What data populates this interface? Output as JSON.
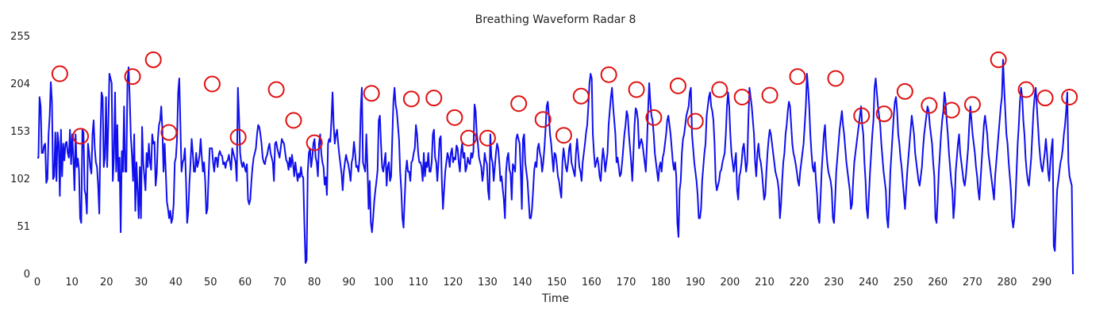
{
  "chart_data": {
    "type": "line",
    "title": "Breathing Waveform Radar 8",
    "xlabel": "Time",
    "ylabel": "",
    "xlim": [
      0,
      299
    ],
    "ylim": [
      0,
      255
    ],
    "x_ticks": [
      0,
      10,
      20,
      30,
      40,
      50,
      60,
      70,
      80,
      90,
      100,
      110,
      120,
      130,
      140,
      150,
      160,
      170,
      180,
      190,
      200,
      210,
      220,
      230,
      240,
      250,
      260,
      270,
      280,
      290
    ],
    "y_ticks": [
      0,
      51,
      102,
      153,
      204,
      255
    ],
    "grid": false,
    "legend": "none",
    "colors": {
      "line": "#1010ee",
      "peak_marker": "#e01010"
    },
    "series": [
      {
        "values": [
          125,
          125,
          190,
          180,
          130,
          130,
          138,
          140,
          98,
          102,
          150,
          170,
          206,
          185,
          102,
          105,
          152,
          100,
          152,
          140,
          84,
          155,
          105,
          140,
          122,
          140,
          142,
          130,
          125,
          155,
          118,
          150,
          125,
          90,
          150,
          115,
          124,
          112,
          60,
          55,
          155,
          152,
          90,
          85,
          65,
          140,
          130,
          115,
          108,
          150,
          165,
          135,
          120,
          115,
          95,
          65,
          145,
          195,
          190,
          115,
          125,
          190,
          115,
          160,
          215,
          210,
          205,
          100,
          125,
          195,
          110,
          160,
          100,
          125,
          45,
          132,
          110,
          180,
          110,
          110,
          205,
          222,
          190,
          148,
          128,
          100,
          150,
          68,
          120,
          90,
          60,
          115,
          60,
          158,
          120,
          105,
          90,
          130,
          115,
          140,
          120,
          112,
          150,
          140,
          142,
          95,
          108,
          145,
          160,
          165,
          180,
          155,
          110,
          140,
          110,
          78,
          70,
          60,
          68,
          55,
          60,
          75,
          120,
          125,
          145,
          195,
          210,
          160,
          110,
          120,
          123,
          135,
          100,
          55,
          68,
          98,
          120,
          145,
          130,
          110,
          110,
          130,
          115,
          120,
          128,
          145,
          125,
          110,
          120,
          100,
          65,
          70,
          105,
          135,
          135,
          135,
          120,
          110,
          125,
          125,
          115,
          128,
          132,
          128,
          127,
          118,
          120,
          114,
          121,
          122,
          128,
          120,
          112,
          135,
          130,
          125,
          120,
          100,
          200,
          170,
          130,
          120,
          115,
          120,
          115,
          110,
          118,
          80,
          75,
          80,
          100,
          115,
          125,
          130,
          135,
          150,
          160,
          158,
          150,
          140,
          125,
          120,
          118,
          125,
          128,
          135,
          140,
          130,
          125,
          120,
          100,
          140,
          142,
          135,
          130,
          125,
          135,
          145,
          142,
          140,
          130,
          122,
          120,
          112,
          125,
          115,
          128,
          118,
          105,
          120,
          110,
          100,
          108,
          104,
          115,
          105,
          104,
          55,
          12,
          15,
          110,
          130,
          135,
          115,
          125,
          140,
          145,
          125,
          120,
          105,
          140,
          150,
          130,
          120,
          115,
          96,
          104,
          85,
          140,
          145,
          142,
          165,
          195,
          160,
          140,
          150,
          155,
          140,
          128,
          118,
          108,
          90,
          110,
          120,
          128,
          122,
          118,
          110,
          100,
          120,
          125,
          142,
          130,
          115,
          116,
          110,
          125,
          175,
          200,
          120,
          115,
          110,
          150,
          115,
          70,
          100,
          55,
          45,
          60,
          78,
          90,
          100,
          112,
          165,
          170,
          140,
          115,
          110,
          120,
          130,
          95,
          115,
          120,
          100,
          105,
          145,
          185,
          200,
          182,
          175,
          160,
          145,
          110,
          90,
          60,
          50,
          80,
          110,
          122,
          110,
          110,
          100,
          120,
          122,
          130,
          135,
          160,
          150,
          130,
          120,
          120,
          115,
          100,
          130,
          105,
          120,
          115,
          130,
          110,
          110,
          120,
          150,
          155,
          125,
          120,
          100,
          120,
          145,
          148,
          100,
          70,
          90,
          110,
          120,
          130,
          125,
          115,
          130,
          135,
          120,
          125,
          123,
          138,
          135,
          120,
          110,
          130,
          140,
          125,
          130,
          110,
          115,
          125,
          120,
          118,
          130,
          125,
          132,
          182,
          175,
          150,
          140,
          125,
          120,
          115,
          100,
          110,
          130,
          122,
          118,
          90,
          80,
          150,
          125,
          120,
          100,
          115,
          130,
          140,
          135,
          120,
          100,
          105,
          92,
          80,
          60,
          110,
          125,
          130,
          112,
          108,
          80,
          118,
          115,
          110,
          145,
          150,
          145,
          140,
          110,
          70,
          145,
          150,
          120,
          110,
          100,
          80,
          60,
          60,
          70,
          90,
          112,
          120,
          115,
          135,
          140,
          130,
          125,
          110,
          120,
          135,
          155,
          180,
          185,
          170,
          150,
          140,
          125,
          110,
          130,
          128,
          118,
          105,
          100,
          90,
          82,
          120,
          135,
          125,
          115,
          110,
          120,
          135,
          140,
          120,
          115,
          110,
          105,
          130,
          145,
          130,
          115,
          110,
          100,
          120,
          130,
          140,
          152,
          160,
          180,
          205,
          215,
          210,
          150,
          130,
          115,
          120,
          125,
          118,
          105,
          100,
          120,
          135,
          125,
          110,
          120,
          130,
          160,
          175,
          190,
          200,
          180,
          165,
          150,
          120,
          125,
          115,
          105,
          108,
          120,
          135,
          150,
          160,
          175,
          170,
          150,
          135,
          120,
          100,
          130,
          160,
          178,
          175,
          165,
          135,
          140,
          145,
          140,
          130,
          120,
          110,
          140,
          175,
          205,
          185,
          170,
          165,
          150,
          130,
          120,
          110,
          100,
          115,
          120,
          110,
          125,
          130,
          140,
          150,
          165,
          170,
          160,
          150,
          135,
          120,
          112,
          120,
          105,
          55,
          40,
          90,
          100,
          130,
          145,
          150,
          160,
          170,
          175,
          180,
          195,
          200,
          150,
          135,
          120,
          110,
          100,
          85,
          60,
          60,
          70,
          100,
          115,
          130,
          140,
          170,
          180,
          190,
          195,
          180,
          175,
          165,
          140,
          100,
          90,
          95,
          100,
          110,
          112,
          120,
          125,
          130,
          150,
          180,
          195,
          180,
          150,
          130,
          120,
          110,
          120,
          130,
          90,
          80,
          105,
          110,
          120,
          135,
          140,
          125,
          110,
          120,
          165,
          200,
          190,
          180,
          165,
          150,
          120,
          105,
          130,
          140,
          125,
          120,
          110,
          95,
          80,
          85,
          110,
          130,
          145,
          155,
          150,
          140,
          130,
          120,
          110,
          105,
          100,
          90,
          60,
          75,
          100,
          120,
          130,
          150,
          160,
          175,
          185,
          180,
          160,
          140,
          130,
          125,
          118,
          110,
          100,
          95,
          110,
          120,
          130,
          140,
          160,
          180,
          215,
          200,
          180,
          150,
          130,
          115,
          110,
          120,
          100,
          85,
          60,
          55,
          80,
          110,
          130,
          150,
          160,
          135,
          120,
          110,
          105,
          100,
          90,
          60,
          55,
          80,
          110,
          125,
          140,
          155,
          165,
          175,
          160,
          150,
          135,
          120,
          110,
          100,
          90,
          70,
          75,
          100,
          120,
          130,
          140,
          150,
          160,
          170,
          180,
          160,
          150,
          120,
          100,
          70,
          60,
          85,
          110,
          130,
          150,
          165,
          200,
          210,
          195,
          180,
          170,
          160,
          140,
          125,
          110,
          100,
          90,
          60,
          50,
          75,
          110,
          130,
          150,
          170,
          185,
          190,
          175,
          150,
          140,
          125,
          115,
          100,
          85,
          70,
          90,
          110,
          125,
          140,
          155,
          170,
          160,
          150,
          130,
          120,
          110,
          100,
          95,
          105,
          115,
          135,
          150,
          160,
          170,
          180,
          175,
          160,
          150,
          140,
          120,
          105,
          60,
          55,
          80,
          110,
          130,
          150,
          165,
          175,
          195,
          185,
          165,
          150,
          130,
          115,
          100,
          90,
          60,
          75,
          110,
          125,
          140,
          150,
          130,
          120,
          110,
          100,
          95,
          105,
          120,
          135,
          160,
          180,
          165,
          150,
          140,
          130,
          115,
          105,
          90,
          80,
          100,
          120,
          140,
          160,
          170,
          160,
          150,
          130,
          120,
          110,
          100,
          90,
          80,
          105,
          120,
          135,
          150,
          165,
          180,
          190,
          230,
          200,
          175,
          150,
          140,
          120,
          105,
          90,
          60,
          50,
          60,
          80,
          110,
          140,
          160,
          185,
          200,
          190,
          165,
          150,
          125,
          110,
          100,
          95,
          110,
          125,
          150,
          175,
          190,
          200,
          180,
          160,
          140,
          125,
          115,
          110,
          120,
          130,
          145,
          130,
          110,
          100,
          120,
          135,
          145,
          30,
          25,
          60,
          90,
          100,
          110,
          120,
          125,
          135,
          150,
          160,
          175,
          195,
          120,
          105,
          100,
          95,
          0
        ]
      }
    ],
    "peaks": [
      {
        "x": 6.5,
        "y": 215
      },
      {
        "x": 12.5,
        "y": 148
      },
      {
        "x": 27.5,
        "y": 212
      },
      {
        "x": 33.5,
        "y": 230
      },
      {
        "x": 38,
        "y": 152
      },
      {
        "x": 50.5,
        "y": 204
      },
      {
        "x": 58,
        "y": 147
      },
      {
        "x": 69,
        "y": 198
      },
      {
        "x": 74,
        "y": 165
      },
      {
        "x": 80,
        "y": 141
      },
      {
        "x": 96.5,
        "y": 194
      },
      {
        "x": 108,
        "y": 188
      },
      {
        "x": 114.5,
        "y": 189
      },
      {
        "x": 120.5,
        "y": 168
      },
      {
        "x": 124.5,
        "y": 146
      },
      {
        "x": 130,
        "y": 146
      },
      {
        "x": 139,
        "y": 183
      },
      {
        "x": 146,
        "y": 166
      },
      {
        "x": 152,
        "y": 149
      },
      {
        "x": 157,
        "y": 191
      },
      {
        "x": 165,
        "y": 214
      },
      {
        "x": 173,
        "y": 198
      },
      {
        "x": 178,
        "y": 168
      },
      {
        "x": 185,
        "y": 202
      },
      {
        "x": 190,
        "y": 164
      },
      {
        "x": 197,
        "y": 198
      },
      {
        "x": 203.5,
        "y": 190
      },
      {
        "x": 211.5,
        "y": 192
      },
      {
        "x": 219.5,
        "y": 212
      },
      {
        "x": 230.5,
        "y": 210
      },
      {
        "x": 238,
        "y": 170
      },
      {
        "x": 244.5,
        "y": 172
      },
      {
        "x": 250.5,
        "y": 196
      },
      {
        "x": 257.5,
        "y": 181
      },
      {
        "x": 264,
        "y": 176
      },
      {
        "x": 270,
        "y": 182
      },
      {
        "x": 277.5,
        "y": 230
      },
      {
        "x": 285.5,
        "y": 198
      },
      {
        "x": 291,
        "y": 189
      },
      {
        "x": 298,
        "y": 190
      }
    ]
  }
}
